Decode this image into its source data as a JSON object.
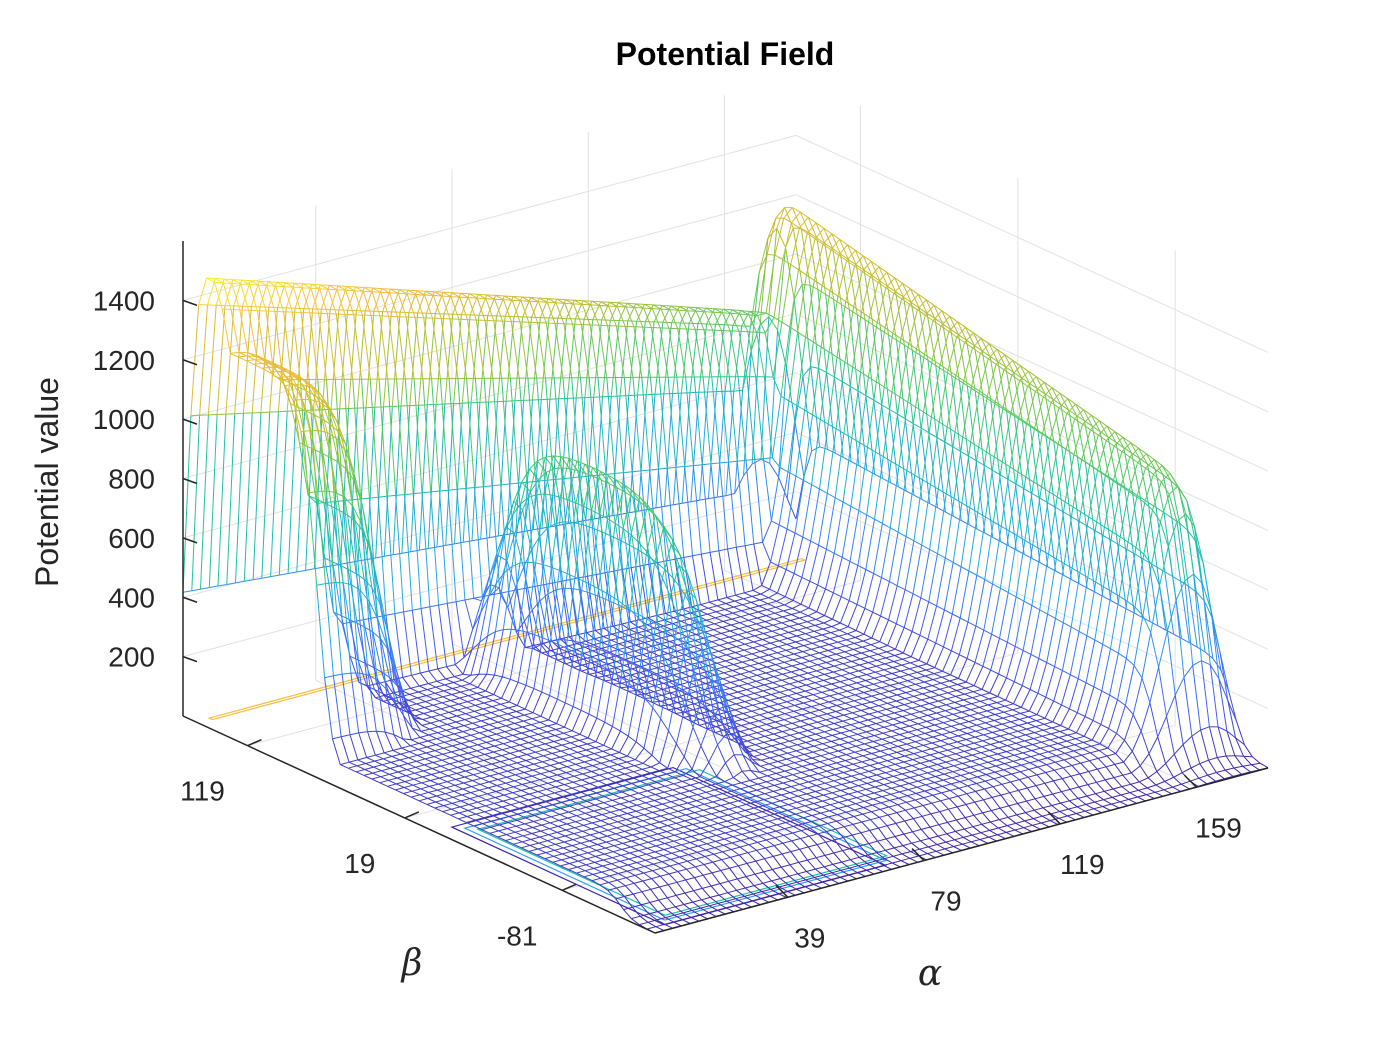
{
  "chart_data": {
    "type": "mesh-3d",
    "title": "Potential Field",
    "xlabel": "α",
    "ylabel": "β",
    "zlabel": "Potential value",
    "x_ticks": [
      "39",
      "79",
      "119",
      "159"
    ],
    "y_ticks": [
      "-81",
      "19",
      "119"
    ],
    "z_ticks": [
      "200",
      "400",
      "600",
      "800",
      "1000",
      "1200",
      "1400"
    ],
    "xlim": [
      0,
      180
    ],
    "ylim": [
      -140,
      160
    ],
    "zlim": [
      0,
      1600
    ],
    "grid": true,
    "contour_projection_on_floor": true,
    "colormap": [
      "#3e26a8",
      "#4361f5",
      "#2aa0ef",
      "#17c0b3",
      "#56cb5c",
      "#c1bd2c",
      "#f9bd3e",
      "#f9fb15"
    ]
  }
}
